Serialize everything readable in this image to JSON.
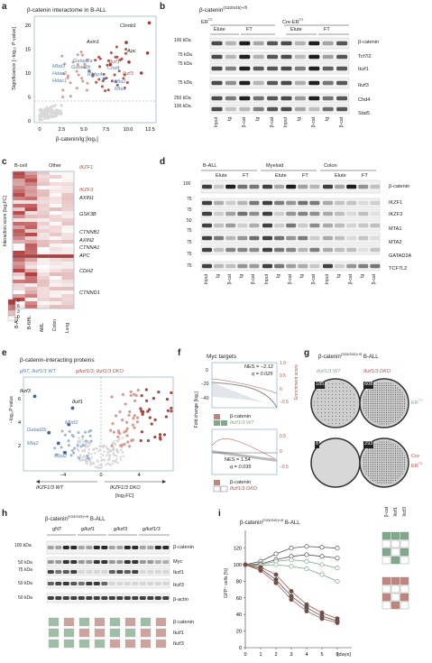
{
  "panels": {
    "a": {
      "label": "a",
      "title": "β-catenin interactome in B-ALL",
      "xlabel": "β-catenin/Ig [log₂]",
      "ylabel": "Significance [−log₁₀ P value]",
      "xticks": [
        "0",
        "2.5",
        "5.0",
        "7.5",
        "10.0",
        "12.5"
      ],
      "yticks": [
        "0",
        "5",
        "10",
        "15",
        "20"
      ],
      "genes_red": [
        "Ctnnb1",
        "Axin1",
        "Apc",
        "Ikzf1",
        "Ikzf3",
        "Gatad2a",
        "Gatad2b",
        "Rbbp4",
        "Chd4",
        "Mta2",
        "Mta1"
      ],
      "genes_blue": [
        "Mbd3",
        "Hdac2",
        "Hdac1"
      ]
    },
    "b": {
      "label": "b",
      "title": "β-catenin",
      "title_sup": "(S33/S45)+/fl",
      "groups": [
        "ER",
        "Cre-ER"
      ],
      "groups_sup": "T2",
      "elute": "Elute",
      "ft": "FT",
      "kda": [
        "100 kDa",
        "75 kDa",
        "75 kDa",
        "75 kDa",
        "250 kDa",
        "100 kDa"
      ],
      "proteins": [
        "β-catenin",
        "Tcf7l2",
        "Ikzf1",
        "Ikzf3",
        "Chd4",
        "Stat5"
      ],
      "lanes": [
        "Input",
        "Ig",
        "β-cat",
        "Ig",
        "β-cat",
        "Input",
        "Ig",
        "β-cat",
        "Ig",
        "β-cat"
      ]
    },
    "c": {
      "label": "c",
      "headers": [
        "B-cell",
        "Other"
      ],
      "genes": [
        "IKZF1",
        "IKZF3",
        "AXIN1",
        "GSK3B",
        "CTNNB1",
        "AXIN2",
        "CTNNA1",
        "APC",
        "CDH2",
        "CTNND1"
      ],
      "ylabel": "Interaction score [log₂FC]",
      "columns": [
        "B-ALL",
        "B-NHL",
        "AML",
        "Colon",
        "Lung"
      ],
      "scale": [
        "9",
        "6",
        "3",
        "0"
      ]
    },
    "d": {
      "label": "d",
      "groups": [
        "B-ALL",
        "Myeloid",
        "Colon"
      ],
      "elute": "Elute",
      "ft": "FT",
      "kda": [
        "100",
        "75",
        "75",
        "50",
        "75",
        "75",
        "75",
        "75"
      ],
      "proteins": [
        "β-catenin",
        "IKZF1",
        "IKZF3",
        "MTA1",
        "MTA2",
        "GATAD2A",
        "TCF7L2"
      ],
      "lanes": [
        "Input",
        "Ig",
        "β-cat",
        "Ig",
        "β-cat",
        "Input",
        "Ig",
        "β-cat",
        "Ig",
        "β-cat",
        "Input",
        "Ig",
        "β-cat",
        "Ig",
        "β-cat"
      ]
    },
    "e": {
      "label": "e",
      "title": "β-catenin-interacting proteins",
      "legend_blue": "gNT, Ikzf1/3 WT",
      "legend_red": "gIkzf1/3, Ikzf1/3 DKO",
      "ylabel": "−log₁₀P value",
      "xlabel_left": "IKZF1/3 WT",
      "xlabel_right": "IKZF1/3 DKO",
      "xlabel_unit": "[log₂FC]",
      "xticks": [
        "−4",
        "0",
        "4"
      ],
      "yticks": [
        "2",
        "4",
        "6"
      ],
      "genes_blue": [
        "Ikzf3",
        "Ikzf1",
        "Mbd3",
        "Gatad2b",
        "Mta2",
        "Mbd2"
      ]
    },
    "f": {
      "label": "f",
      "title": "Myc targets",
      "nes1": "NES = −2.12",
      "q1": "q = 0.025",
      "nes2": "NES = 1.54",
      "q2": "q = 0.035",
      "ylabel": "Fold change [log₂]",
      "ylabel_right": "Enrichment score",
      "yticks_left": [
        "0",
        "−20",
        "−40"
      ],
      "yticks_right1": [
        "1.0",
        "0.5",
        "0",
        "−0.5"
      ],
      "yticks_right2": [
        "0.5",
        "0",
        "−0.5"
      ],
      "legend1": [
        "β-catenin",
        "Ikzf1/3 WT"
      ],
      "legend2": [
        "β-catenin",
        "Ikzf1/3 DKO"
      ]
    },
    "g": {
      "label": "g",
      "title": "β-catenin",
      "title_sup": "(S33/S45)+/fl",
      "title_suffix": " B-ALL",
      "col_wt": "Ikzf1/3 WT",
      "col_dko": "Ikzf1/3 DKO",
      "row_er": "ER",
      "row_cre": "Cre",
      "row_cre2": "ER",
      "sup": "T2",
      "counts": [
        "185",
        "608",
        "8",
        "293"
      ]
    },
    "h": {
      "label": "h",
      "title": "β-catenin",
      "title_sup": "(S33/S45)+/fl",
      "title_suffix": " B-ALL",
      "groups": [
        "gNT",
        "gIkzf1",
        "gIkzf3",
        "gIkzf1/3"
      ],
      "kda": [
        "100 kDa",
        "50 kDa",
        "75 kDa",
        "50 kDa",
        "50 kDa"
      ],
      "proteins": [
        "β-catenin",
        "Myc",
        "Ikzf1",
        "Ikzf3",
        "β-actin"
      ],
      "grid_labels": [
        "β-catenin",
        "Ikzf1",
        "Ikzf3"
      ]
    },
    "i": {
      "label": "i",
      "title": "β-catenin",
      "title_sup": "(S33/S45)+/fl",
      "title_suffix": " B-ALL",
      "ylabel": "GFP⁺ cells [%]",
      "xlabel": "[days]",
      "xticks": [
        "0",
        "1",
        "2",
        "3",
        "4",
        "5",
        "6"
      ],
      "yticks": [
        "0",
        "20",
        "40",
        "60",
        "80",
        "100",
        "120"
      ],
      "key_cols": [
        "β-cat",
        "Ikzf1",
        "Ikzf3"
      ]
    }
  },
  "colors": {
    "red": "#b5524a",
    "blue": "#5a7fb5",
    "green": "#7fa98a",
    "lightred": "#e3a59f",
    "grey": "#c9c9c9"
  }
}
